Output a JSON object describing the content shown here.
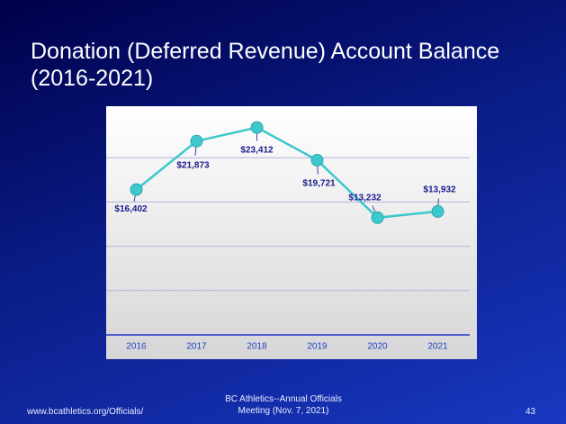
{
  "chart_data": {
    "type": "line",
    "title": "Donation (Deferred Revenue) Account Balance (2016-2021)",
    "categories": [
      "2016",
      "2017",
      "2018",
      "2019",
      "2020",
      "2021"
    ],
    "series": [
      {
        "name": "Balance",
        "color": "#3cc8cc",
        "values": [
          16402,
          21873,
          23412,
          19721,
          13232,
          13932
        ],
        "value_labels": [
          "$16,402",
          "$21,873",
          "$23,412",
          "$19,721",
          "$13,232",
          "$13,932"
        ]
      }
    ],
    "ylim": [
      0,
      25000
    ],
    "yticks": [
      0,
      5000,
      10000,
      15000,
      20000
    ],
    "grid": true
  },
  "footer": {
    "url": "www.bcathletics.org/Officials/",
    "center": [
      "BC Athletics--Annual Officials",
      "Meeting (Nov. 7, 2021)"
    ],
    "page": "43"
  }
}
